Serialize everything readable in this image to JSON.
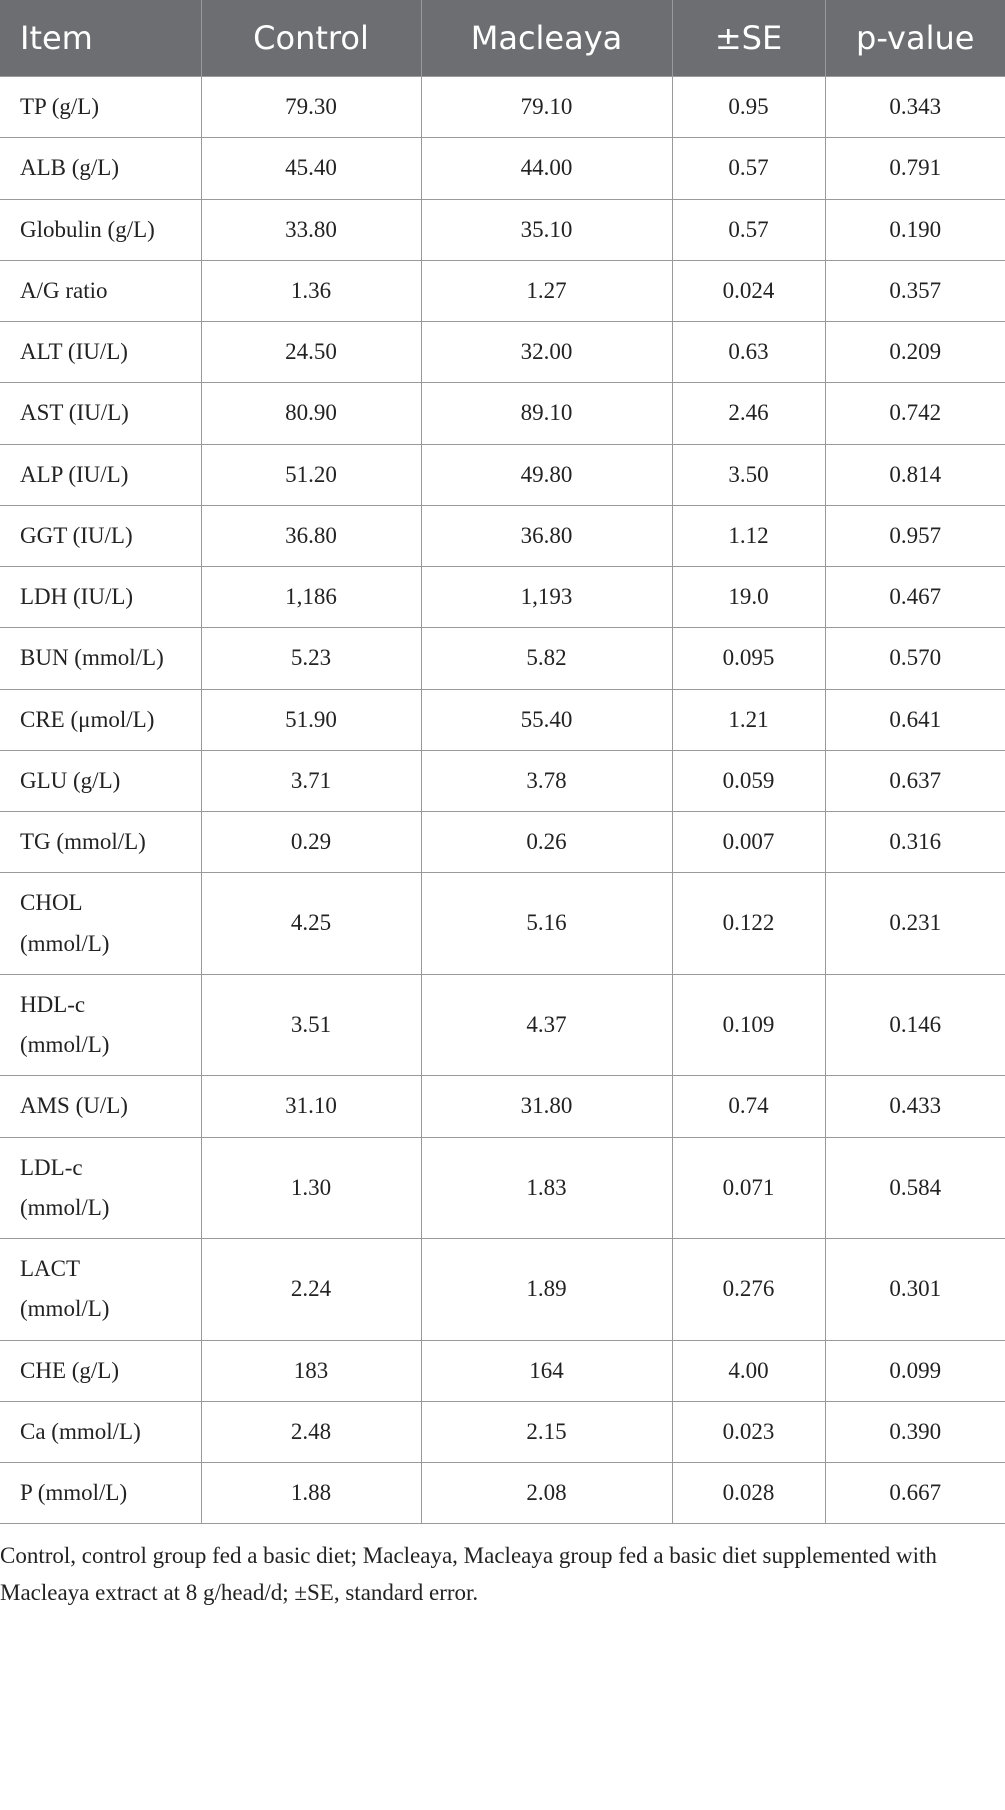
{
  "table": {
    "header": [
      "Item",
      "Control",
      "Macleaya",
      "±SE",
      "p-value"
    ],
    "rows": [
      [
        "TP (g/L)",
        "79.30",
        "79.10",
        "0.95",
        "0.343"
      ],
      [
        "ALB (g/L)",
        "45.40",
        "44.00",
        "0.57",
        "0.791"
      ],
      [
        "Globulin (g/L)",
        "33.80",
        "35.10",
        "0.57",
        "0.190"
      ],
      [
        "A/G ratio",
        "1.36",
        "1.27",
        "0.024",
        "0.357"
      ],
      [
        "ALT (IU/L)",
        "24.50",
        "32.00",
        "0.63",
        "0.209"
      ],
      [
        "AST (IU/L)",
        "80.90",
        "89.10",
        "2.46",
        "0.742"
      ],
      [
        "ALP (IU/L)",
        "51.20",
        "49.80",
        "3.50",
        "0.814"
      ],
      [
        "GGT (IU/L)",
        "36.80",
        "36.80",
        "1.12",
        "0.957"
      ],
      [
        "LDH (IU/L)",
        "1,186",
        "1,193",
        "19.0",
        "0.467"
      ],
      [
        "BUN (mmol/L)",
        "5.23",
        "5.82",
        "0.095",
        "0.570"
      ],
      [
        "CRE (μmol/L)",
        "51.90",
        "55.40",
        "1.21",
        "0.641"
      ],
      [
        "GLU (g/L)",
        "3.71",
        "3.78",
        "0.059",
        "0.637"
      ],
      [
        "TG (mmol/L)",
        "0.29",
        "0.26",
        "0.007",
        "0.316"
      ],
      [
        "CHOL (mmol/L)",
        "4.25",
        "5.16",
        "0.122",
        "0.231"
      ],
      [
        "HDL-c (mmol/L)",
        "3.51",
        "4.37",
        "0.109",
        "0.146"
      ],
      [
        "AMS (U/L)",
        "31.10",
        "31.80",
        "0.74",
        "0.433"
      ],
      [
        "LDL-c (mmol/L)",
        "1.30",
        "1.83",
        "0.071",
        "0.584"
      ],
      [
        "LACT (mmol/L)",
        "2.24",
        "1.89",
        "0.276",
        "0.301"
      ],
      [
        "CHE (g/L)",
        "183",
        "164",
        "4.00",
        "0.099"
      ],
      [
        "Ca (mmol/L)",
        "2.48",
        "2.15",
        "0.023",
        "0.390"
      ],
      [
        "P (mmol/L)",
        "1.88",
        "2.08",
        "0.028",
        "0.667"
      ]
    ]
  },
  "footnote": "Control, control group fed a basic diet; Macleaya, Macleaya group fed a basic diet supplemented with Macleaya extract at 8 g/head/d; ±SE, standard error."
}
